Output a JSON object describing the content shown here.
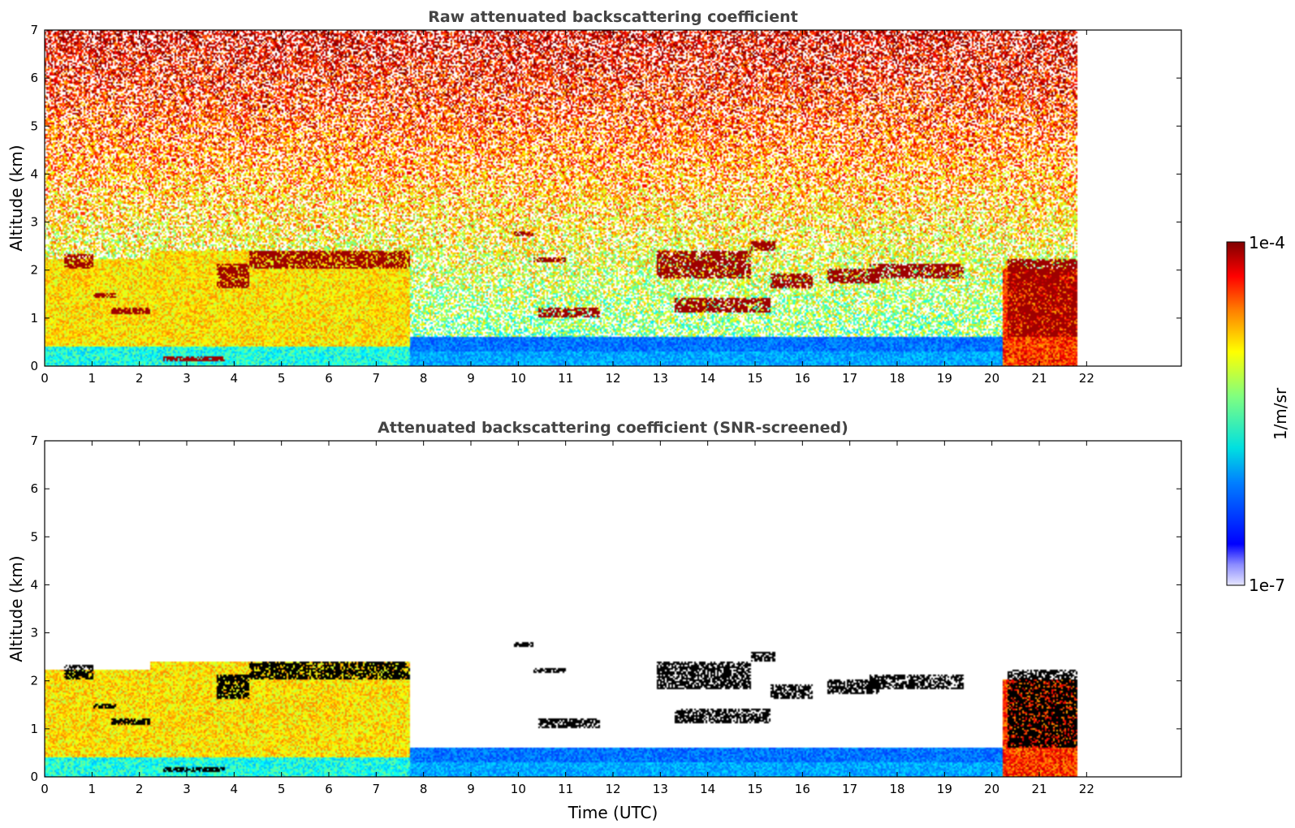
{
  "chart_data": [
    {
      "type": "heatmap",
      "title": "Raw attenuated backscattering coefficient",
      "xlabel": "",
      "ylabel": "Altitude (km)",
      "xlim": [
        0,
        24
      ],
      "ylim": [
        0,
        7
      ],
      "x_ticks": [
        "0",
        "1",
        "2",
        "3",
        "4",
        "5",
        "6",
        "7",
        "8",
        "9",
        "10",
        "11",
        "12",
        "13",
        "14",
        "15",
        "16",
        "17",
        "18",
        "19",
        "20",
        "21",
        "22"
      ],
      "y_ticks": [
        "0",
        "1",
        "2",
        "3",
        "4",
        "5",
        "6",
        "7"
      ],
      "data_extent_x": [
        0,
        21.8
      ],
      "features": {
        "cloud_layers": [
          {
            "t": [
              0.4,
              1.0
            ],
            "z": [
              2.0,
              2.3
            ]
          },
          {
            "t": [
              1.0,
              1.5
            ],
            "z": [
              1.4,
              1.5
            ]
          },
          {
            "t": [
              1.4,
              2.2
            ],
            "z": [
              1.05,
              1.2
            ]
          },
          {
            "t": [
              2.5,
              3.8
            ],
            "z": [
              0.1,
              0.2
            ]
          },
          {
            "t": [
              3.6,
              4.3
            ],
            "z": [
              1.6,
              2.1
            ]
          },
          {
            "t": [
              4.3,
              7.7
            ],
            "z": [
              2.0,
              2.4
            ]
          },
          {
            "t": [
              9.9,
              10.3
            ],
            "z": [
              2.7,
              2.8
            ]
          },
          {
            "t": [
              10.3,
              11.0
            ],
            "z": [
              2.15,
              2.25
            ]
          },
          {
            "t": [
              10.4,
              11.7
            ],
            "z": [
              1.0,
              1.2
            ]
          },
          {
            "t": [
              12.9,
              14.9
            ],
            "z": [
              1.8,
              2.4
            ]
          },
          {
            "t": [
              14.9,
              15.4
            ],
            "z": [
              2.4,
              2.6
            ]
          },
          {
            "t": [
              13.3,
              15.3
            ],
            "z": [
              1.1,
              1.4
            ]
          },
          {
            "t": [
              15.3,
              16.2
            ],
            "z": [
              1.6,
              1.9
            ]
          },
          {
            "t": [
              16.5,
              17.6
            ],
            "z": [
              1.7,
              2.0
            ]
          },
          {
            "t": [
              17.4,
              19.4
            ],
            "z": [
              1.8,
              2.1
            ]
          },
          {
            "t": [
              20.3,
              21.8
            ],
            "z": [
              0.6,
              2.2
            ]
          }
        ]
      }
    },
    {
      "type": "heatmap",
      "title": "Attenuated backscattering coefficient (SNR-screened)",
      "xlabel": "Time (UTC)",
      "ylabel": "Altitude (km)",
      "xlim": [
        0,
        24
      ],
      "ylim": [
        0,
        7
      ],
      "x_ticks": [
        "0",
        "1",
        "2",
        "3",
        "4",
        "5",
        "6",
        "7",
        "8",
        "9",
        "10",
        "11",
        "12",
        "13",
        "14",
        "15",
        "16",
        "17",
        "18",
        "19",
        "20",
        "21",
        "22"
      ],
      "y_ticks": [
        "0",
        "1",
        "2",
        "3",
        "4",
        "5",
        "6",
        "7"
      ],
      "data_extent_x": [
        0,
        21.8
      ]
    }
  ],
  "colorbar": {
    "label": "1/m/sr",
    "max_label": "1e-4",
    "min_label": "1e-7",
    "scale": "log",
    "range": [
      1e-07,
      0.0001
    ],
    "colormap": "jet"
  }
}
